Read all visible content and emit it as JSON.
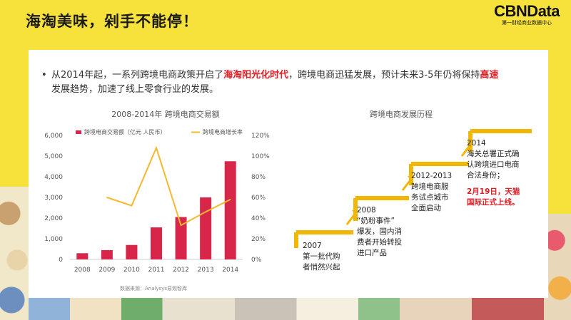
{
  "page": {
    "title": "海淘美味，剁手不能停！"
  },
  "logo": {
    "brand": "CBNData",
    "sub": "第一财经商业数据中心"
  },
  "intro": {
    "bullet": "•",
    "part1": "从2014年起，一系列跨境电商政策开启了",
    "highlight1": "海淘阳光化时代",
    "part2": "，跨境电商迅猛发展，预计未来3-5年仍将保持",
    "highlight2": "高速",
    "part3": "发展趋势，加速了线上零食行业的发展。"
  },
  "chart_data": {
    "type": "bar",
    "title": "2008-2014年 跨境电商交易额",
    "categories": [
      "2008",
      "2009",
      "2010",
      "2011",
      "2012",
      "2013",
      "2014"
    ],
    "series": [
      {
        "name": "跨境电商交易额（亿元 人民币）",
        "type": "bar",
        "axis": "left",
        "color": "#d8264a",
        "values": [
          300,
          450,
          700,
          1550,
          2050,
          3000,
          4750
        ]
      },
      {
        "name": "跨境电商增长率",
        "type": "line",
        "axis": "right",
        "color": "#f5b82e",
        "values": [
          null,
          60,
          52,
          108,
          33,
          46,
          58
        ]
      }
    ],
    "ylim": [
      0,
      6000
    ],
    "y2lim": [
      0,
      120
    ],
    "yticks": [
      "0",
      "1,000",
      "2,000",
      "3,000",
      "4,000",
      "5,000",
      "6,000"
    ],
    "y2ticks": [
      "0%",
      "20%",
      "40%",
      "60%",
      "80%",
      "100%",
      "120%"
    ],
    "source": "数据来源：Analysys易观智库",
    "grid": false,
    "legend": "top"
  },
  "timeline": {
    "title": "跨境电商发展历程",
    "accent": "#f2b705",
    "steps": [
      {
        "year": "2007",
        "lines": [
          "第一批代购",
          "者悄然兴起"
        ]
      },
      {
        "year": "2008",
        "lines": [
          "“奶粉事件”",
          "爆发，国内消",
          "费者开始转投",
          "进口产品"
        ]
      },
      {
        "year": "2012-2013",
        "lines": [
          "跨境电商服",
          "务试点城市",
          "全面启动"
        ]
      },
      {
        "year": "2014",
        "lines": [
          "海关总署正式确",
          "认跨境进口电商",
          "合法身份；"
        ],
        "highlight": [
          "2月19日，天猫",
          "国际正式上线。"
        ]
      }
    ]
  }
}
